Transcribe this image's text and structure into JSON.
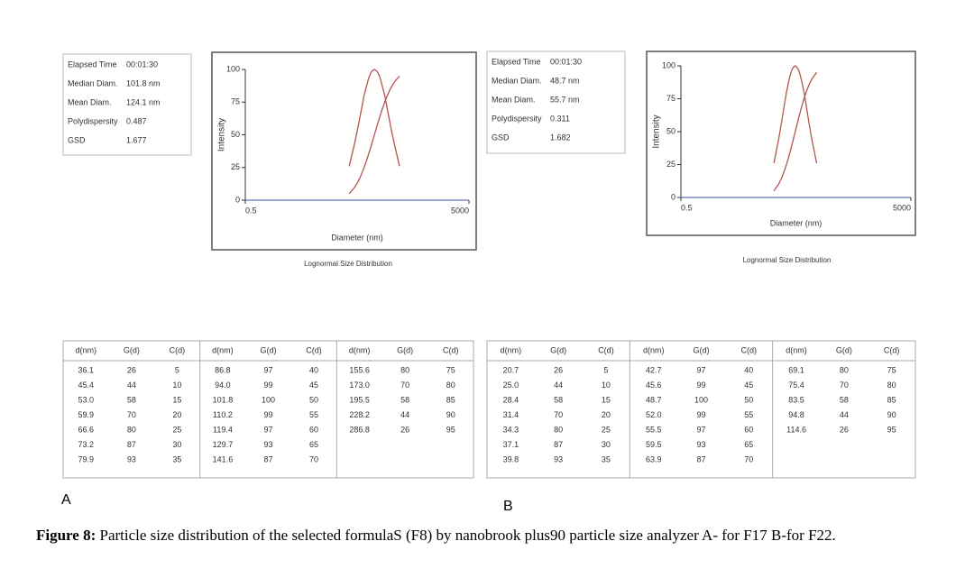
{
  "panels": [
    {
      "label": "A",
      "stats": [
        [
          "Elapsed Time",
          "00:01:30"
        ],
        [
          "Median Diam.",
          "101.8 nm"
        ],
        [
          "Mean Diam.",
          "124.1 nm"
        ],
        [
          "Polydispersity",
          "0.487"
        ],
        [
          "GSD",
          "1.677"
        ]
      ]
    },
    {
      "label": "B",
      "stats": [
        [
          "Elapsed Time",
          "00:01:30"
        ],
        [
          "Median Diam.",
          "48.7 nm"
        ],
        [
          "Mean Diam.",
          "55.7 nm"
        ],
        [
          "Polydispersity",
          "0.311"
        ],
        [
          "GSD",
          "1.682"
        ]
      ]
    }
  ],
  "chart_data": [
    {
      "type": "line",
      "title": "Lognormal Size Distribution",
      "x_label": "Diameter (nm)",
      "y_label": "Intensity",
      "x_name": "d(nm)",
      "x": [
        36.1,
        45.4,
        53.0,
        59.9,
        66.6,
        73.2,
        79.9,
        86.8,
        94.0,
        101.8,
        110.2,
        119.4,
        129.7,
        141.6,
        155.6,
        173.0,
        195.5,
        228.2,
        286.8
      ],
      "x_labels": [
        "36.1",
        "45.4",
        "53.0",
        "59.9",
        "66.6",
        "73.2",
        "79.9",
        "86.8",
        "94.0",
        "101.8",
        "110.2",
        "119.4",
        "129.7",
        "141.6",
        "155.6",
        "173.0",
        "195.5",
        "228.2",
        "286.8"
      ],
      "series": [
        {
          "name": "G(d)",
          "color": "#b3564f",
          "values": [
            26,
            44,
            58,
            70,
            80,
            87,
            93,
            97,
            99,
            100,
            99,
            97,
            93,
            87,
            80,
            70,
            58,
            44,
            26
          ]
        },
        {
          "name": "C(d)",
          "color": "#b3564f",
          "values": [
            5,
            10,
            15,
            20,
            25,
            30,
            35,
            40,
            45,
            50,
            55,
            60,
            65,
            70,
            75,
            80,
            85,
            90,
            95
          ]
        }
      ],
      "xlim": [
        0.5,
        5000
      ],
      "xticks": [
        0.5,
        5000
      ],
      "log_x": true,
      "ylim": [
        0,
        100
      ],
      "yticks": [
        0,
        25,
        50,
        75,
        100
      ]
    },
    {
      "type": "line",
      "title": "Lognormal Size Distribution",
      "x_label": "Diameter (nm)",
      "y_label": "Intensity",
      "x_name": "d(nm)",
      "x": [
        20.7,
        25.0,
        28.4,
        31.4,
        34.3,
        37.1,
        39.8,
        42.7,
        45.6,
        48.7,
        52.0,
        55.5,
        59.5,
        63.9,
        69.1,
        75.4,
        83.5,
        94.8,
        114.6
      ],
      "x_labels": [
        "20.7",
        "25.0",
        "28.4",
        "31.4",
        "34.3",
        "37.1",
        "39.8",
        "42.7",
        "45.6",
        "48.7",
        "52.0",
        "55.5",
        "59.5",
        "63.9",
        "69.1",
        "75.4",
        "83.5",
        "94.8",
        "114.6"
      ],
      "series": [
        {
          "name": "G(d)",
          "color": "#b3564f",
          "values": [
            26,
            44,
            58,
            70,
            80,
            87,
            93,
            97,
            99,
            100,
            99,
            97,
            93,
            87,
            80,
            70,
            58,
            44,
            26
          ]
        },
        {
          "name": "C(d)",
          "color": "#b3564f",
          "values": [
            5,
            10,
            15,
            20,
            25,
            30,
            35,
            40,
            45,
            50,
            55,
            60,
            65,
            70,
            75,
            80,
            85,
            90,
            95
          ]
        }
      ],
      "xlim": [
        0.5,
        5000
      ],
      "xticks": [
        0.5,
        5000
      ],
      "log_x": true,
      "ylim": [
        0,
        100
      ],
      "yticks": [
        0,
        25,
        50,
        75,
        100
      ]
    }
  ],
  "caption": {
    "label": "Figure 8:",
    "text": "Particle size distribution of the selected formulaS (F8) by nanobrook plus90 particle size analyzer A- for F17 B-for F22."
  }
}
